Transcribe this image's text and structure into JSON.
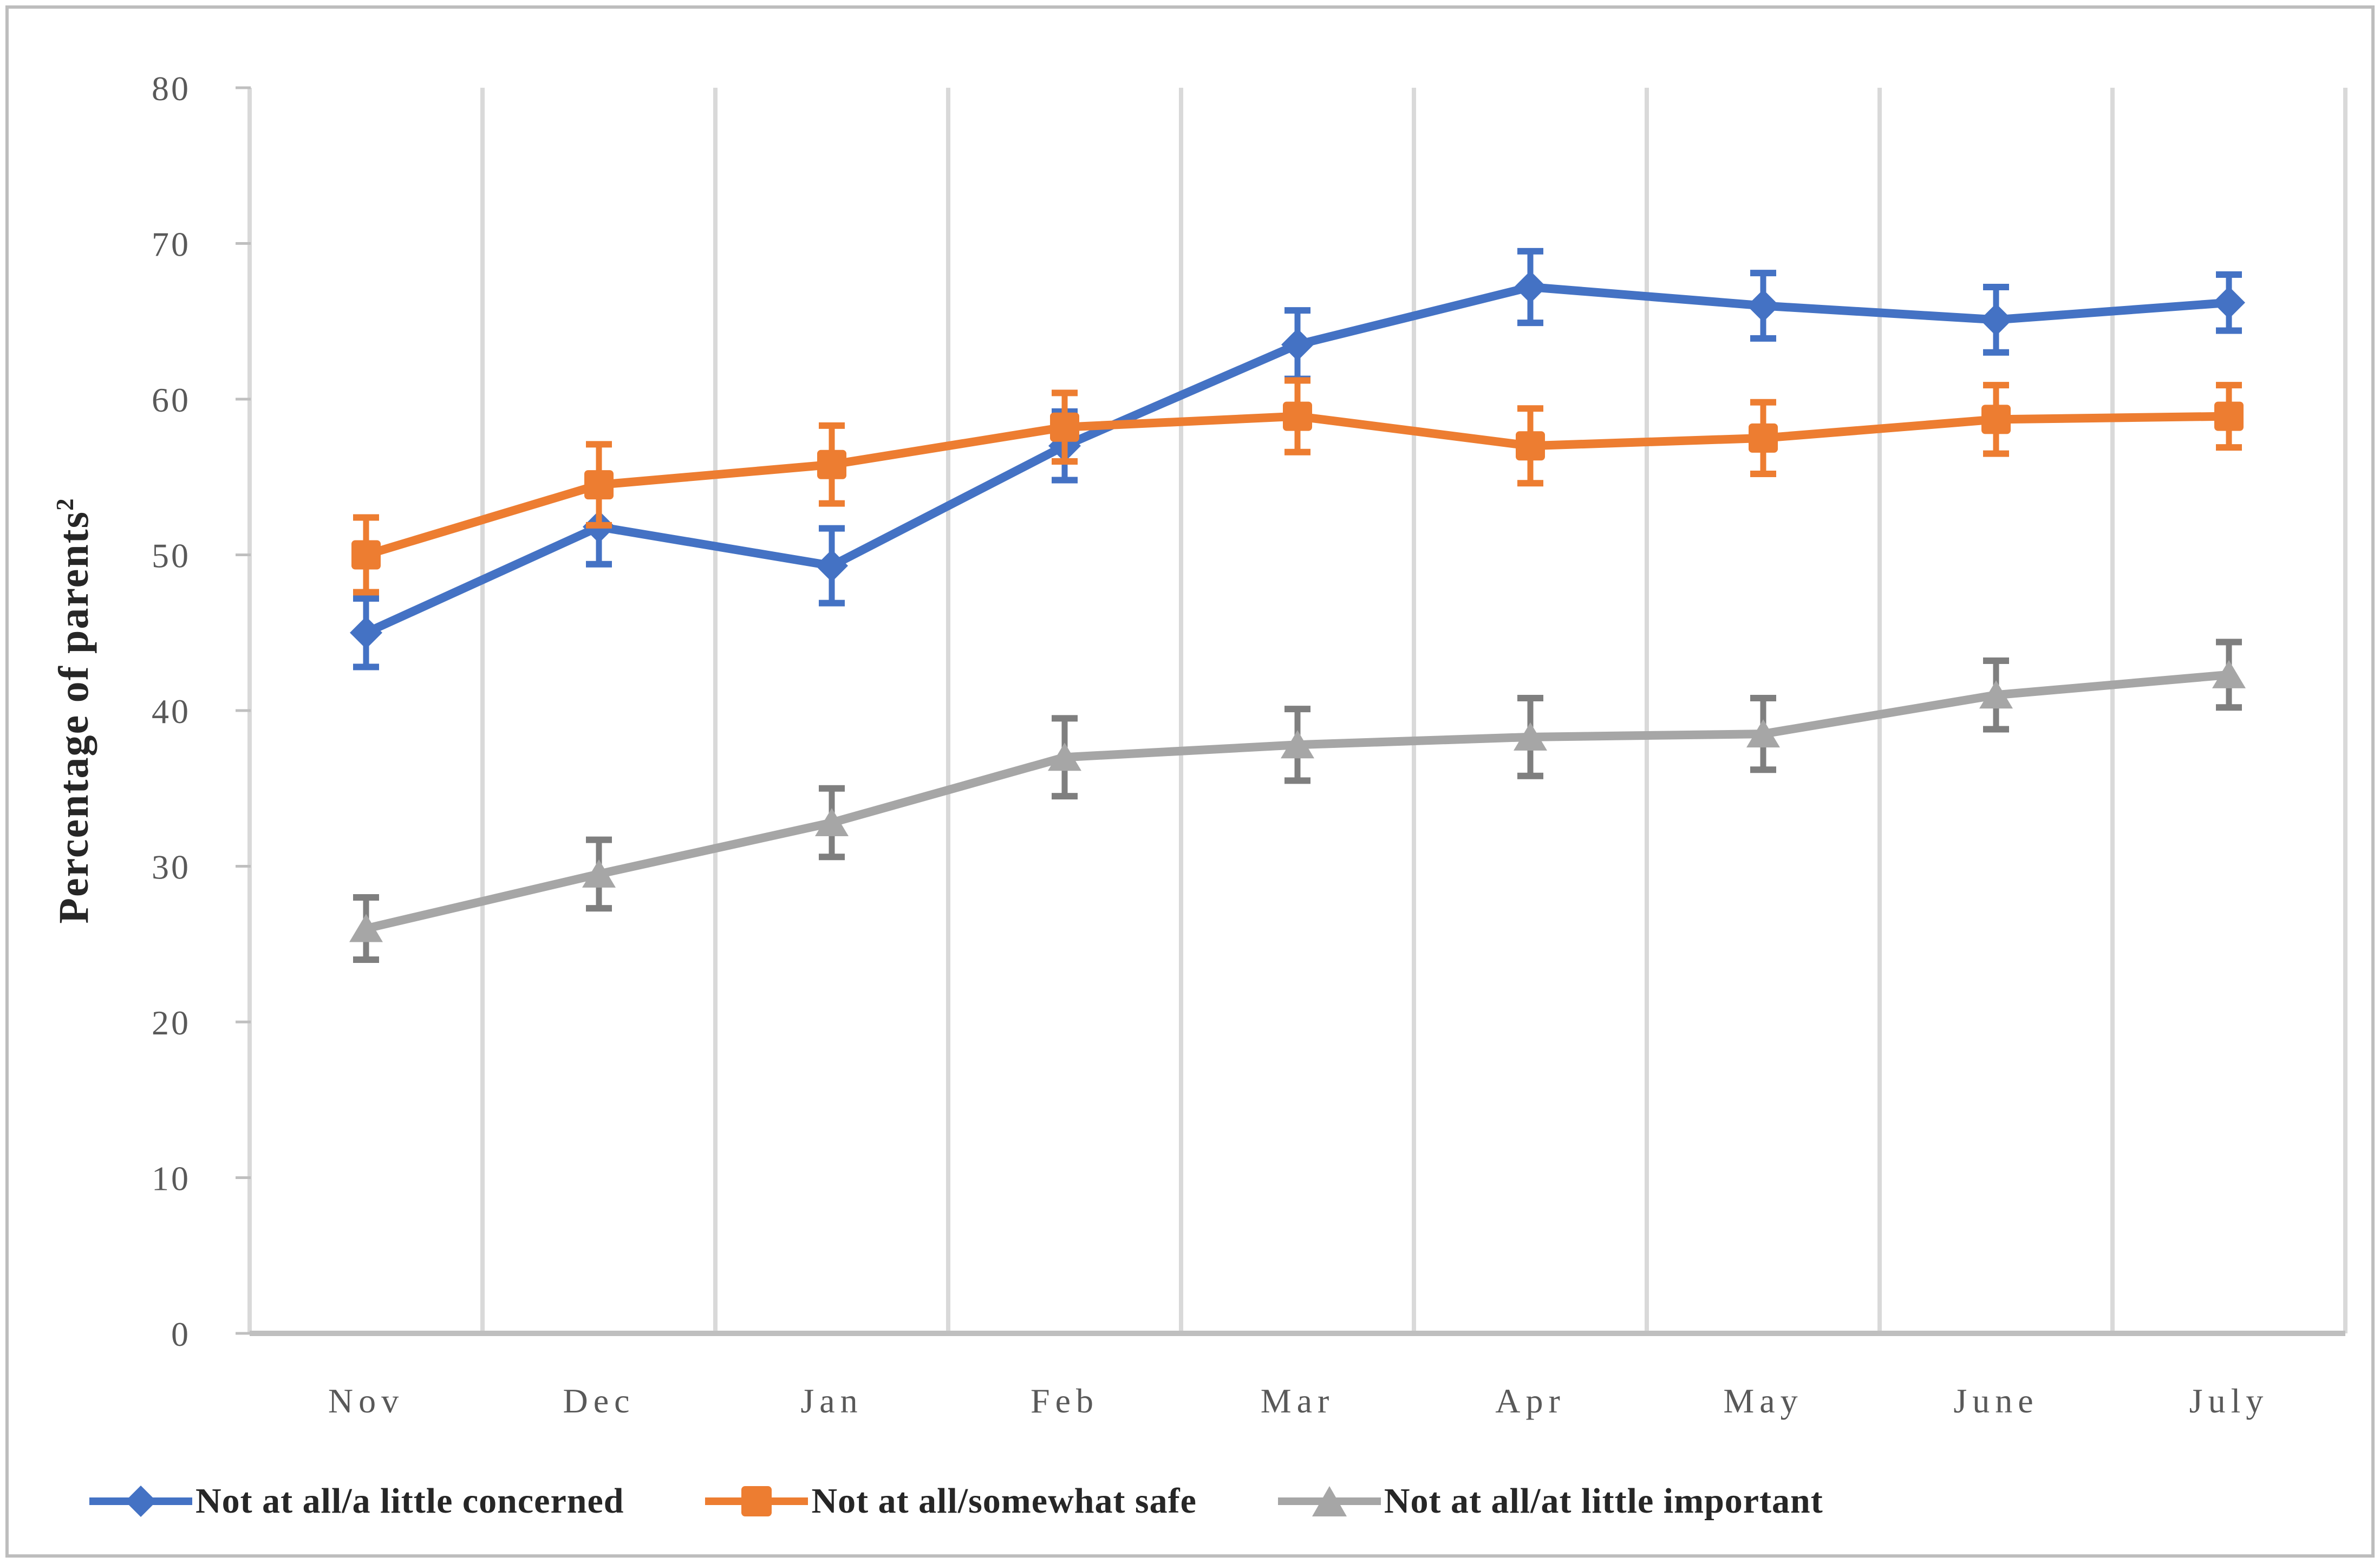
{
  "chart_data": {
    "type": "line",
    "title": "",
    "xlabel": "",
    "ylabel": "Percentage of parents",
    "ylabel_superscript": "2",
    "ylim": [
      0,
      80
    ],
    "ytick_step": 10,
    "yticks": [
      0,
      10,
      20,
      30,
      40,
      50,
      60,
      70,
      80
    ],
    "categories": [
      "Nov",
      "Dec",
      "Jan",
      "Feb",
      "Mar",
      "Apr",
      "May",
      "June",
      "July"
    ],
    "grid": "vertical-only",
    "legend_position": "bottom",
    "error_bars": true,
    "series": [
      {
        "name": "Not at all/a little concerned",
        "marker": "diamond",
        "color": "#4472C4",
        "error_color": "#4472C4",
        "values": [
          45.0,
          51.8,
          49.3,
          57.0,
          63.5,
          67.2,
          66.0,
          65.1,
          66.2
        ],
        "errors": [
          2.2,
          2.4,
          2.4,
          2.2,
          2.2,
          2.3,
          2.1,
          2.1,
          1.8
        ]
      },
      {
        "name": "Not at all/somewhat safe",
        "marker": "square",
        "color": "#ED7D31",
        "error_color": "#ED7D31",
        "values": [
          50.0,
          54.5,
          55.8,
          58.2,
          58.9,
          57.0,
          57.5,
          58.7,
          58.9
        ],
        "errors": [
          2.4,
          2.6,
          2.5,
          2.2,
          2.3,
          2.4,
          2.3,
          2.2,
          2.0
        ]
      },
      {
        "name": "Not at all/at little important",
        "marker": "triangle",
        "color": "#A6A6A6",
        "error_color": "#7F7F7F",
        "values": [
          26.0,
          29.5,
          32.8,
          37.0,
          37.8,
          38.3,
          38.5,
          41.0,
          42.3
        ],
        "errors": [
          2.0,
          2.2,
          2.2,
          2.5,
          2.3,
          2.5,
          2.3,
          2.2,
          2.1
        ]
      }
    ],
    "style": {
      "axis_text_color": "#595959",
      "title_text_color": "#262626",
      "gridline_color": "#D9D9D9",
      "axis_line_color": "#BFBFBF"
    }
  }
}
